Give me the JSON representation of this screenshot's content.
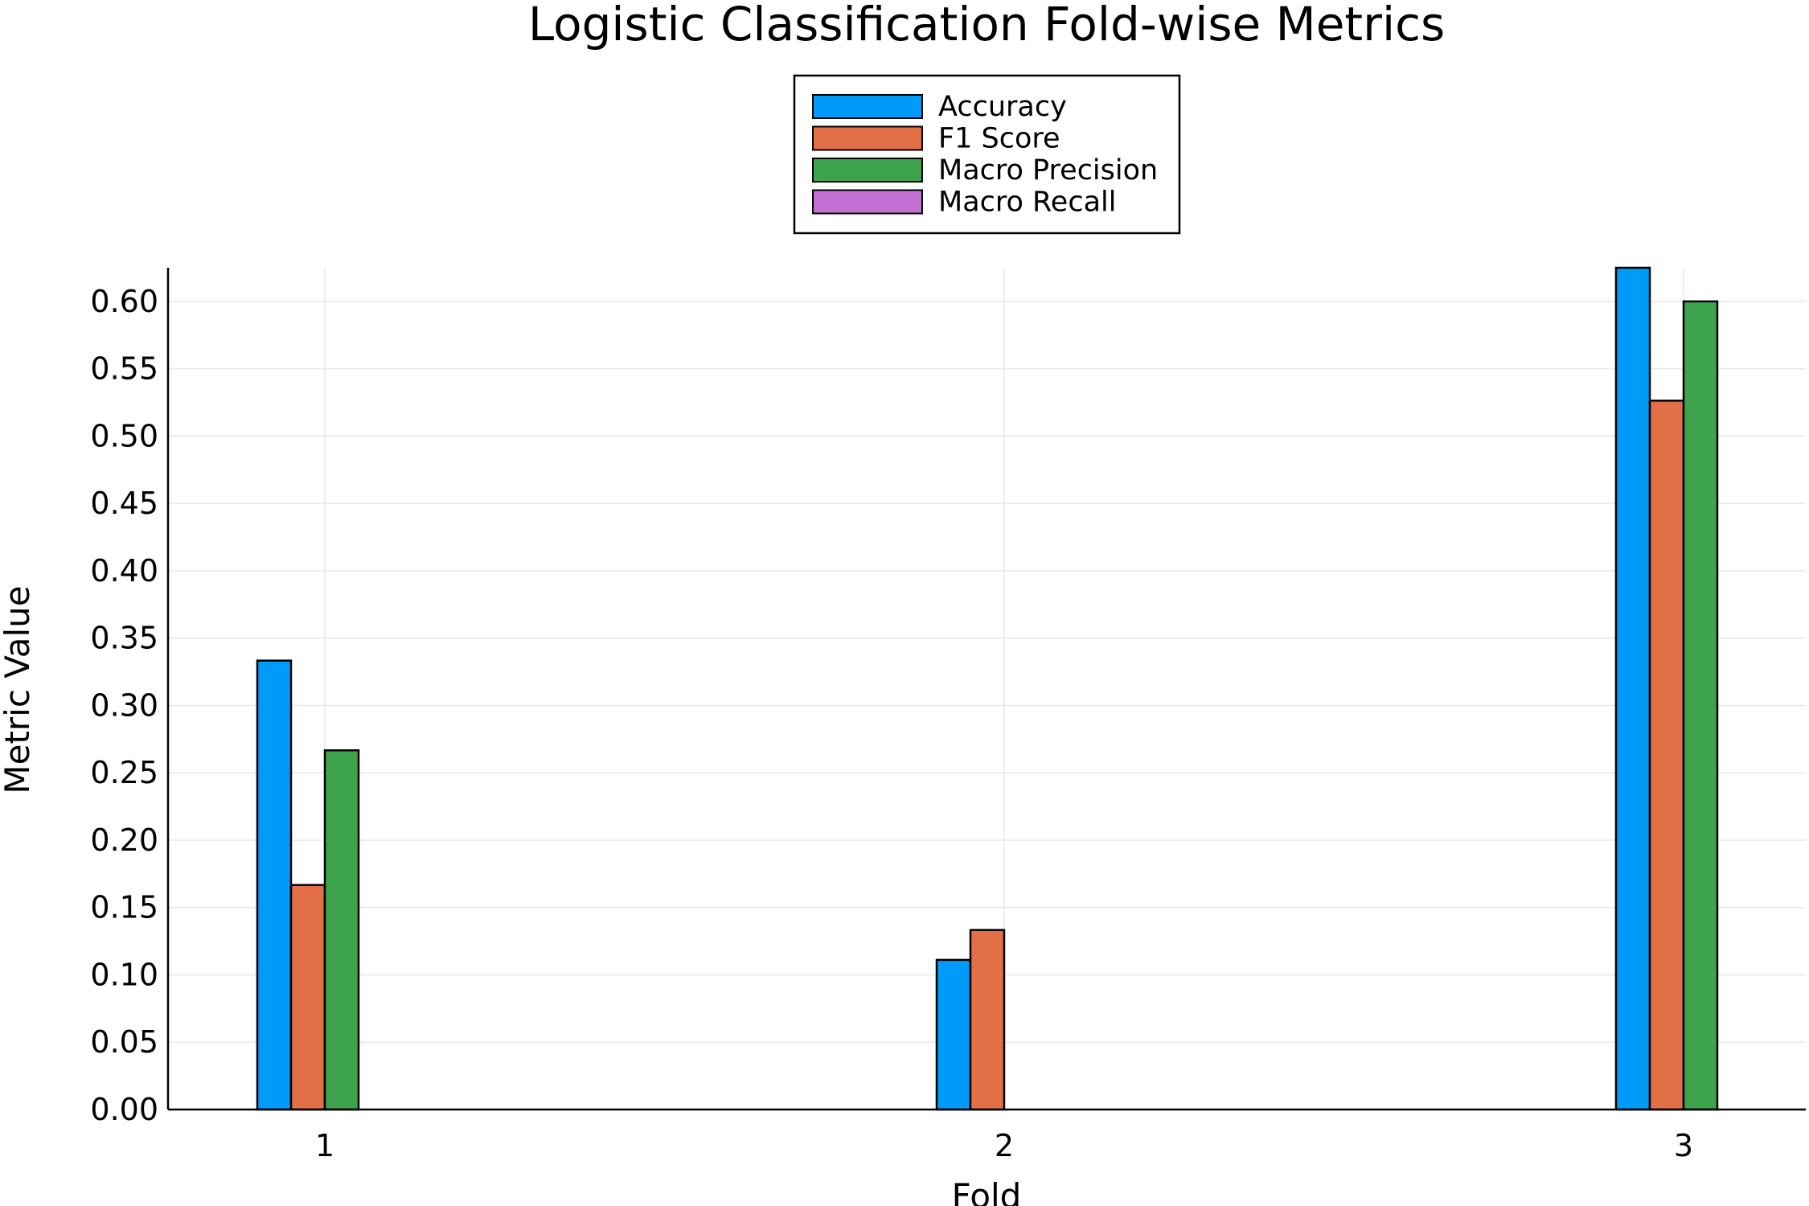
{
  "chart_data": {
    "type": "bar",
    "title": "Logistic Classification Fold-wise Metrics",
    "xlabel": "Fold",
    "ylabel": "Metric Value",
    "categories": [
      "1",
      "2",
      "3"
    ],
    "series": [
      {
        "name": "Accuracy",
        "color": "#009af9",
        "values": [
          0.3333,
          0.1111,
          0.625
        ]
      },
      {
        "name": "F1 Score",
        "color": "#e26f46",
        "values": [
          0.1667,
          0.1333,
          0.5263
        ]
      },
      {
        "name": "Macro Precision",
        "color": "#3da44d",
        "values": [
          0.2667,
          0.0,
          0.6
        ]
      },
      {
        "name": "Macro Recall",
        "color": "#c271d2",
        "values": [
          0.0,
          0.0,
          0.0
        ]
      }
    ],
    "ylim": [
      0,
      0.625
    ],
    "yticks": [
      "0.00",
      "0.05",
      "0.10",
      "0.15",
      "0.20",
      "0.25",
      "0.30",
      "0.35",
      "0.40",
      "0.45",
      "0.50",
      "0.55",
      "0.60"
    ],
    "grid": true,
    "legend_position": "top-center, outside plot"
  }
}
